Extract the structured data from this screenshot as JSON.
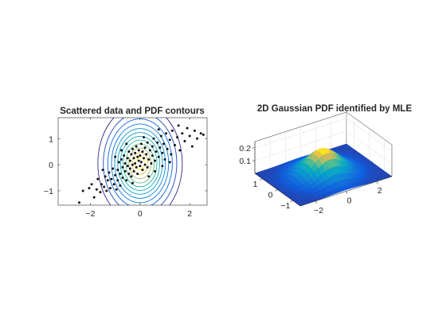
{
  "chart_data": [
    {
      "type": "scatter",
      "title": "Scattered data and PDF contours",
      "xlabel": "",
      "ylabel": "",
      "xlim": [
        -3.3,
        2.7
      ],
      "ylim": [
        -1.55,
        1.8
      ],
      "xticks": [
        -2,
        0,
        2
      ],
      "yticks": [
        -1,
        0,
        1
      ],
      "grid": false,
      "contours": {
        "center": [
          0.0,
          0.05
        ],
        "levels_x_radius": [
          0.18,
          0.32,
          0.45,
          0.57,
          0.68,
          0.79,
          0.9,
          1.02,
          1.15,
          1.3,
          1.48,
          1.7
        ],
        "y_to_x_ratio": 0.82,
        "colormap": "parula"
      },
      "points": [
        [
          -2.45,
          -1.45
        ],
        [
          -2.3,
          -1.0
        ],
        [
          -2.05,
          -0.9
        ],
        [
          -1.95,
          -0.75
        ],
        [
          -1.85,
          -1.25
        ],
        [
          -1.75,
          -0.95
        ],
        [
          -1.7,
          -0.55
        ],
        [
          -1.6,
          -1.05
        ],
        [
          -1.55,
          -0.75
        ],
        [
          -1.45,
          -0.85
        ],
        [
          -1.4,
          -0.45
        ],
        [
          -1.35,
          -1.0
        ],
        [
          -1.3,
          -0.6
        ],
        [
          -1.25,
          -0.3
        ],
        [
          -1.2,
          -0.9
        ],
        [
          -1.15,
          -0.55
        ],
        [
          -1.1,
          -0.15
        ],
        [
          -1.05,
          -0.75
        ],
        [
          -1.0,
          -0.4
        ],
        [
          -0.95,
          -0.95
        ],
        [
          -0.9,
          -0.2
        ],
        [
          -0.9,
          -0.6
        ],
        [
          -0.85,
          0.1
        ],
        [
          -0.8,
          -0.35
        ],
        [
          -0.8,
          -0.8
        ],
        [
          -0.75,
          0.2
        ],
        [
          -0.7,
          -0.1
        ],
        [
          -0.7,
          -0.5
        ],
        [
          -0.65,
          0.35
        ],
        [
          -0.6,
          -0.25
        ],
        [
          -0.6,
          0.05
        ],
        [
          -0.55,
          -0.6
        ],
        [
          -0.5,
          0.25
        ],
        [
          -0.5,
          -0.05
        ],
        [
          -0.45,
          0.5
        ],
        [
          -0.45,
          -0.35
        ],
        [
          -0.4,
          0.15
        ],
        [
          -0.4,
          -0.15
        ],
        [
          -0.35,
          0.4
        ],
        [
          -0.35,
          -0.45
        ],
        [
          -0.3,
          0.0
        ],
        [
          -0.3,
          0.6
        ],
        [
          -0.25,
          0.25
        ],
        [
          -0.25,
          -0.25
        ],
        [
          -0.2,
          0.45
        ],
        [
          -0.2,
          0.05
        ],
        [
          -0.15,
          -0.1
        ],
        [
          -0.15,
          0.7
        ],
        [
          -0.1,
          0.3
        ],
        [
          -0.1,
          -0.35
        ],
        [
          -0.05,
          0.15
        ],
        [
          -0.05,
          0.55
        ],
        [
          0.0,
          -0.05
        ],
        [
          0.0,
          0.35
        ],
        [
          0.05,
          0.8
        ],
        [
          0.05,
          0.1
        ],
        [
          0.1,
          -0.2
        ],
        [
          0.1,
          0.5
        ],
        [
          0.15,
          0.25
        ],
        [
          0.2,
          0.65
        ],
        [
          0.2,
          0.0
        ],
        [
          0.25,
          0.4
        ],
        [
          0.3,
          -0.1
        ],
        [
          0.3,
          0.85
        ],
        [
          0.35,
          0.2
        ],
        [
          0.4,
          0.55
        ],
        [
          0.45,
          0.05
        ],
        [
          0.5,
          0.7
        ],
        [
          0.5,
          0.35
        ],
        [
          0.55,
          1.0
        ],
        [
          0.6,
          0.15
        ],
        [
          0.65,
          0.5
        ],
        [
          0.7,
          0.85
        ],
        [
          0.75,
          0.3
        ],
        [
          0.8,
          0.65
        ],
        [
          0.85,
          1.1
        ],
        [
          0.9,
          0.45
        ],
        [
          0.95,
          0.8
        ],
        [
          1.0,
          0.2
        ],
        [
          1.05,
          1.2
        ],
        [
          1.1,
          0.6
        ],
        [
          1.2,
          0.95
        ],
        [
          1.25,
          0.4
        ],
        [
          1.3,
          1.3
        ],
        [
          1.4,
          0.75
        ],
        [
          1.5,
          1.05
        ],
        [
          1.55,
          1.5
        ],
        [
          1.6,
          0.55
        ],
        [
          1.7,
          1.2
        ],
        [
          1.8,
          0.9
        ],
        [
          1.9,
          1.4
        ],
        [
          2.0,
          1.1
        ],
        [
          2.1,
          0.7
        ],
        [
          2.2,
          1.3
        ],
        [
          2.3,
          1.0
        ],
        [
          2.45,
          1.2
        ],
        [
          2.55,
          1.15
        ],
        [
          -0.3,
          -0.7
        ],
        [
          0.35,
          -0.45
        ],
        [
          -0.75,
          0.55
        ],
        [
          0.6,
          -0.25
        ],
        [
          -1.0,
          0.3
        ],
        [
          0.9,
          -0.05
        ],
        [
          -0.55,
          0.8
        ],
        [
          0.15,
          1.05
        ],
        [
          1.2,
          0.1
        ],
        [
          -1.5,
          -0.2
        ],
        [
          0.75,
          1.35
        ]
      ]
    },
    {
      "type": "surface",
      "title": "2D Gaussian PDF identified by MLE",
      "xlabel": "",
      "ylabel": "",
      "zlabel": "",
      "xlim": [
        -3,
        3
      ],
      "ylim": [
        -1.5,
        1.5
      ],
      "zlim": [
        0,
        0.25
      ],
      "xticks": [
        -2,
        0,
        2
      ],
      "yticks": [
        -1,
        0,
        1
      ],
      "zticks": [
        0.1,
        0.2
      ],
      "peak": 0.2,
      "colormap": "parula"
    }
  ]
}
